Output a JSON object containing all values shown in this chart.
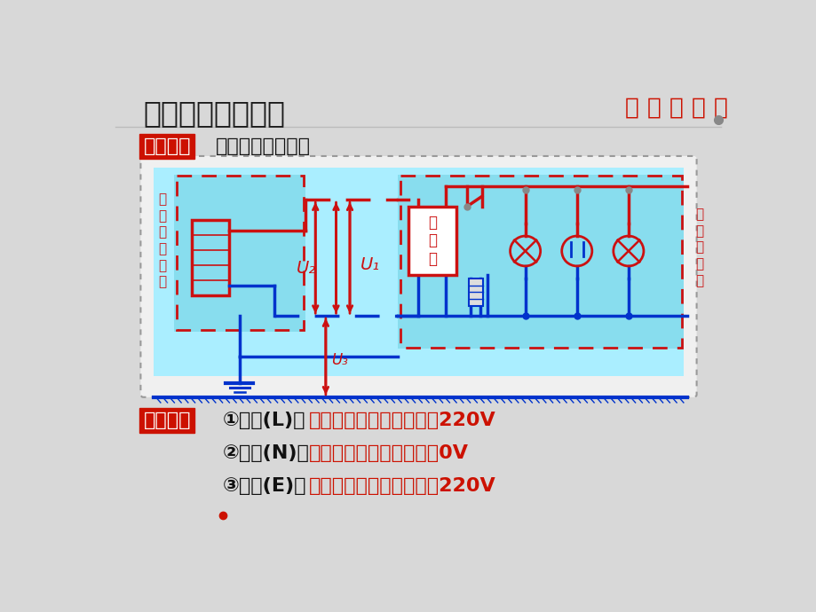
{
  "bg_color": "#d8d8d8",
  "title": "三、家庭电路结构",
  "title_color": "#1a1a1a",
  "title_fontsize": 24,
  "badge_right": "【 进 户 线 】",
  "badge_right_color": "#cc1100",
  "shizhi_label": "【实质】",
  "shizhi_text": "家庭电路的电源。",
  "shizhi_label_bg": "#cc1100",
  "text_color": "#111111",
  "diagram_outer_bg": "#f5f5f5",
  "diagram_bg": "#aaeeff",
  "red_wire": "#cc1111",
  "blue_wire": "#0033cc",
  "source_label": "低\n压\n供\n电\n电\n源",
  "home_label": "家\n庭\n用\n户\n端",
  "meter_label": "电\n能\n表",
  "bottom_lines": [
    {
      "prefix": "【组成】",
      "num": "①火线(L)：",
      "desc": "火线与零线之间的电压是220V"
    },
    {
      "prefix": "",
      "num": "②零线(N)：",
      "desc": "零线与大地之间的电压是0V"
    },
    {
      "prefix": "",
      "num": "③地线(E)：",
      "desc": "火线与大地之间的电压是220V"
    }
  ],
  "bracket_color": "#cc1100",
  "num_color": "#111111",
  "desc_color": "#cc1100",
  "dot_color": "#cc1100"
}
